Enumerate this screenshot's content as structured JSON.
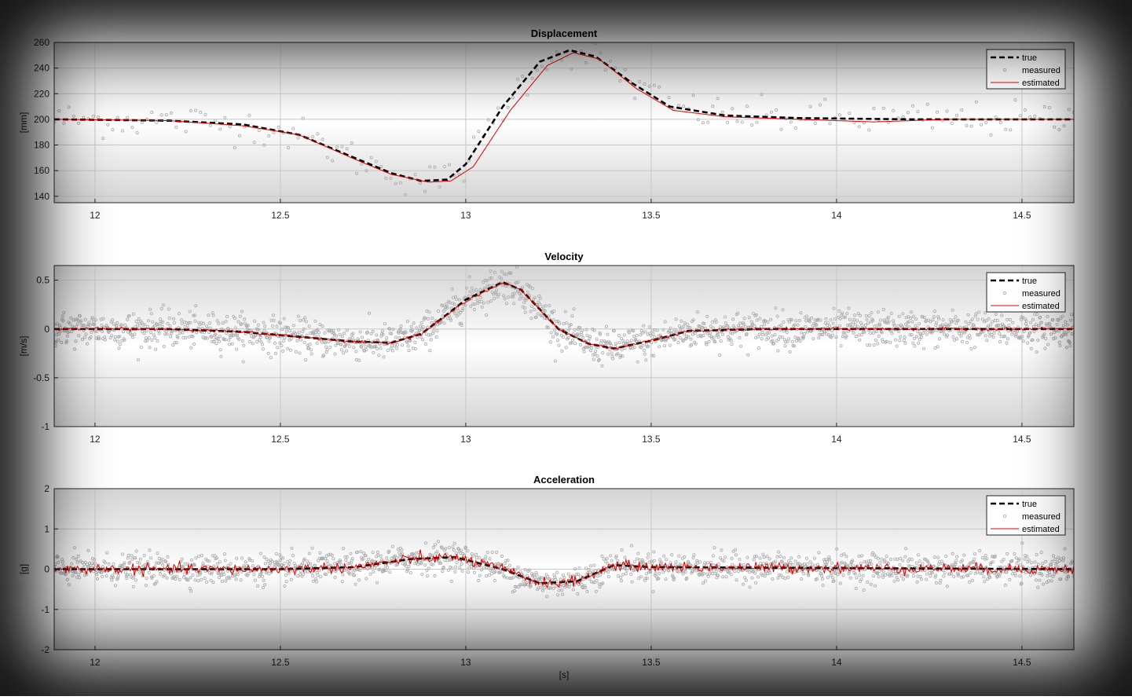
{
  "chart_data": [
    {
      "type": "line",
      "title": "Displacement",
      "ylabel": "[mm]",
      "xlabel": "",
      "xlim": [
        11.89,
        14.64
      ],
      "ylim": [
        135,
        260
      ],
      "xticks": [
        12,
        12.5,
        13,
        13.5,
        14,
        14.5
      ],
      "xtick_labels": [
        "12",
        "12.5",
        "13",
        "13.5",
        "14",
        "14.5"
      ],
      "yticks": [
        140,
        160,
        180,
        200,
        220,
        240,
        260
      ],
      "ytick_labels": [
        "140",
        "160",
        "180",
        "200",
        "220",
        "240",
        "260"
      ],
      "grid": true,
      "legend_position": "top-right",
      "noise_sd": 7,
      "series": [
        {
          "name": "true",
          "style": "dashed",
          "color": "#000000",
          "x": [
            11.89,
            12.2,
            12.4,
            12.55,
            12.7,
            12.8,
            12.88,
            12.95,
            13.0,
            13.1,
            13.2,
            13.28,
            13.35,
            13.45,
            13.55,
            13.7,
            13.9,
            14.2,
            14.64
          ],
          "y": [
            200,
            199,
            196,
            188,
            170,
            158,
            152,
            153,
            165,
            210,
            245,
            254,
            249,
            228,
            210,
            203,
            201,
            200,
            200
          ]
        },
        {
          "name": "measured",
          "style": "points",
          "color": "#aaaaaa",
          "x": [],
          "y": []
        },
        {
          "name": "estimated",
          "style": "solid",
          "color": "#e00000",
          "x": [
            11.89,
            12.2,
            12.4,
            12.55,
            12.7,
            12.8,
            12.9,
            12.96,
            13.02,
            13.12,
            13.22,
            13.29,
            13.36,
            13.46,
            13.56,
            13.7,
            13.9,
            14.1,
            14.3,
            14.64
          ],
          "y": [
            200,
            199,
            195,
            188,
            169,
            157,
            151,
            152,
            163,
            207,
            242,
            252,
            247,
            224,
            207,
            202,
            200,
            198,
            200,
            200
          ]
        }
      ]
    },
    {
      "type": "line",
      "title": "Velocity",
      "ylabel": "[m/s]",
      "xlabel": "",
      "xlim": [
        11.89,
        14.64
      ],
      "ylim": [
        -1,
        0.65
      ],
      "xticks": [
        12,
        12.5,
        13,
        13.5,
        14,
        14.5
      ],
      "xtick_labels": [
        "12",
        "12.5",
        "13",
        "13.5",
        "14",
        "14.5"
      ],
      "yticks": [
        -1,
        -0.5,
        0,
        0.5
      ],
      "ytick_labels": [
        "-1",
        "-0.5",
        "0",
        "0.5"
      ],
      "grid": true,
      "legend_position": "top-right",
      "noise_sd": 0.09,
      "series": [
        {
          "name": "true",
          "style": "dashed",
          "color": "#000000",
          "x": [
            11.89,
            12.2,
            12.4,
            12.55,
            12.7,
            12.8,
            12.88,
            12.95,
            13.0,
            13.1,
            13.15,
            13.25,
            13.33,
            13.4,
            13.5,
            13.6,
            13.8,
            14.64
          ],
          "y": [
            0.0,
            0.0,
            -0.03,
            -0.08,
            -0.13,
            -0.14,
            -0.05,
            0.15,
            0.3,
            0.48,
            0.4,
            0.0,
            -0.15,
            -0.2,
            -0.12,
            -0.02,
            0.0,
            0.0
          ]
        },
        {
          "name": "measured",
          "style": "points",
          "color": "#aaaaaa",
          "x": [],
          "y": []
        },
        {
          "name": "estimated",
          "style": "solid",
          "color": "#e00000",
          "x": [
            11.89,
            12.2,
            12.4,
            12.55,
            12.7,
            12.8,
            12.88,
            12.95,
            13.0,
            13.1,
            13.15,
            13.25,
            13.33,
            13.4,
            13.5,
            13.6,
            13.8,
            14.64
          ],
          "y": [
            0.0,
            0.0,
            -0.03,
            -0.08,
            -0.13,
            -0.14,
            -0.05,
            0.14,
            0.29,
            0.47,
            0.4,
            0.0,
            -0.15,
            -0.2,
            -0.12,
            -0.02,
            0.0,
            0.0
          ]
        }
      ]
    },
    {
      "type": "line",
      "title": "Acceleration",
      "ylabel": "[g]",
      "xlabel": "[s]",
      "xlim": [
        11.89,
        14.64
      ],
      "ylim": [
        -2,
        2
      ],
      "xticks": [
        12,
        12.5,
        13,
        13.5,
        14,
        14.5
      ],
      "xtick_labels": [
        "12",
        "12.5",
        "13",
        "13.5",
        "14",
        "14.5"
      ],
      "yticks": [
        -2,
        -1,
        0,
        1,
        2
      ],
      "ytick_labels": [
        "-2",
        "-1",
        "0",
        "1",
        "2"
      ],
      "grid": true,
      "legend_position": "top-right",
      "noise_sd": 0.18,
      "series": [
        {
          "name": "true",
          "style": "dashed",
          "color": "#000000",
          "x": [
            11.89,
            12.5,
            12.7,
            12.85,
            12.97,
            13.1,
            13.2,
            13.3,
            13.4,
            13.5,
            14.64
          ],
          "y": [
            0.0,
            0.0,
            0.05,
            0.25,
            0.3,
            0.0,
            -0.35,
            -0.3,
            0.1,
            0.05,
            0.0
          ]
        },
        {
          "name": "measured",
          "style": "points",
          "color": "#aaaaaa",
          "x": [],
          "y": []
        },
        {
          "name": "estimated",
          "style": "solid",
          "color": "#e00000",
          "x": [
            11.89,
            12.5,
            12.7,
            12.85,
            12.97,
            13.1,
            13.2,
            13.3,
            13.4,
            13.5,
            14.64
          ],
          "y": [
            0.0,
            0.0,
            0.05,
            0.25,
            0.3,
            0.0,
            -0.35,
            -0.3,
            0.1,
            0.05,
            0.0
          ]
        }
      ]
    }
  ]
}
